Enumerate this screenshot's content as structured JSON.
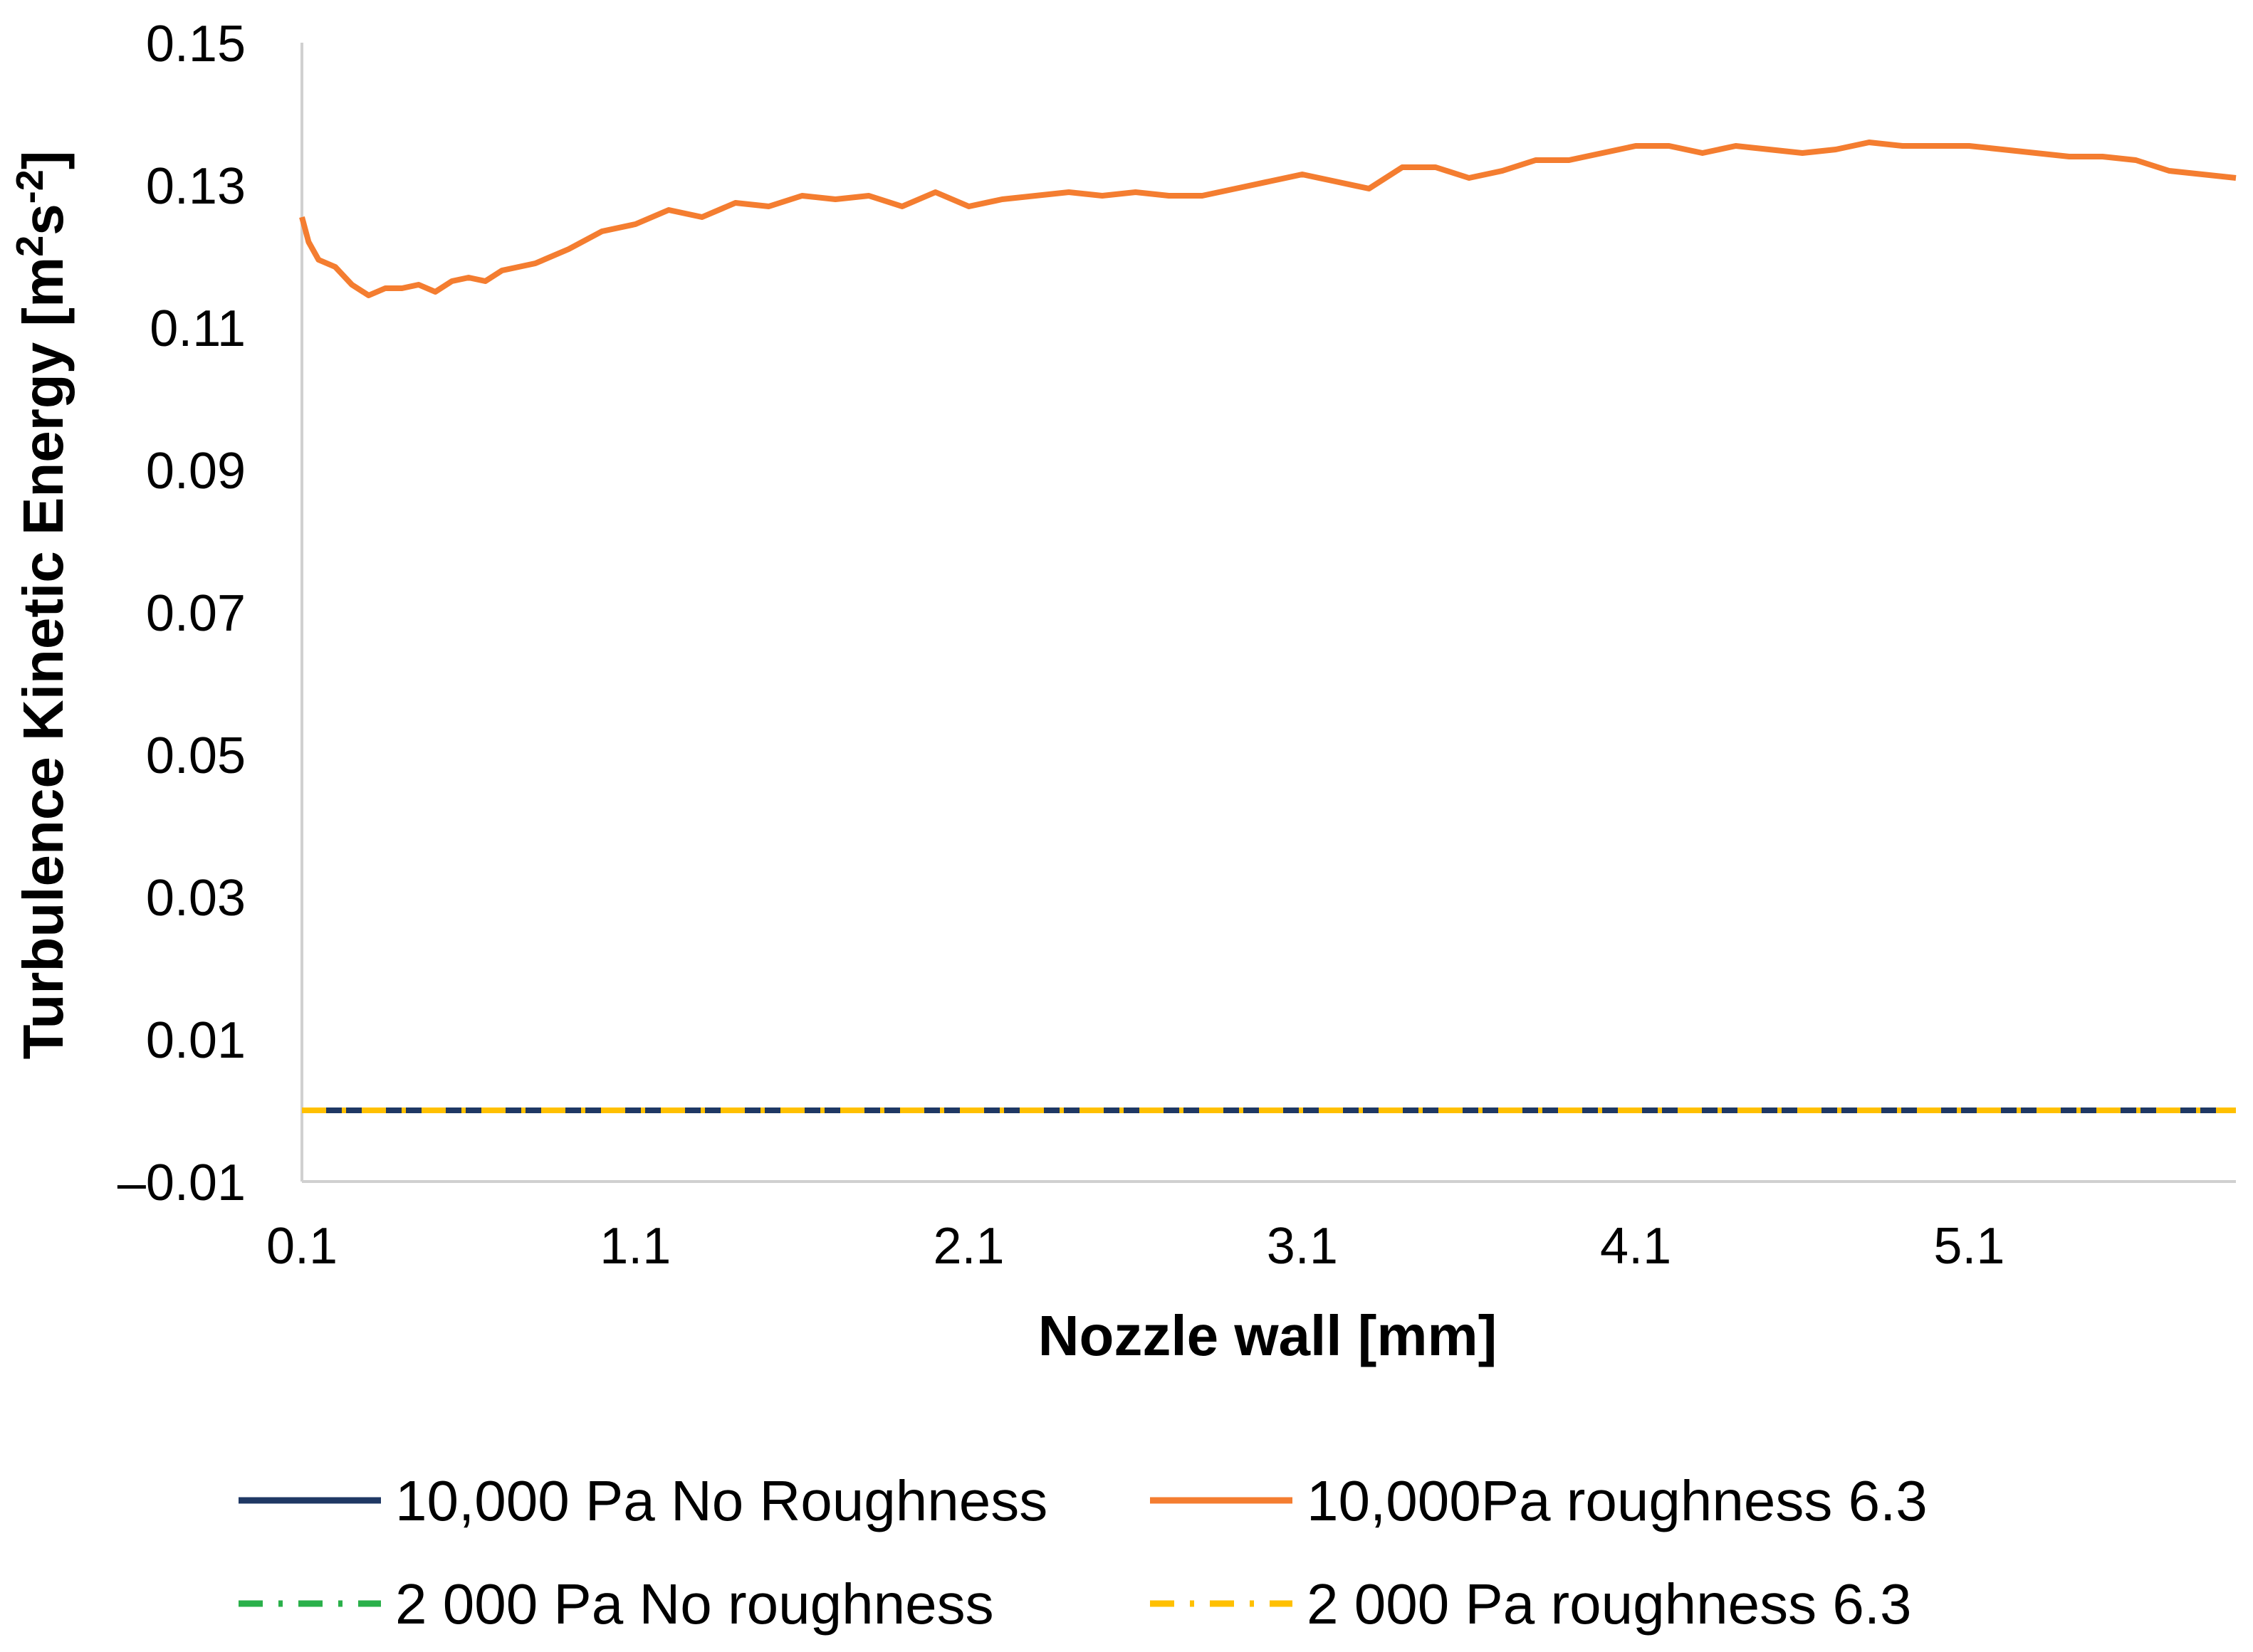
{
  "chart_data": {
    "type": "line",
    "title": "",
    "xlabel": "Nozzle wall [mm]",
    "ylabel_main": "Turbulence Kinetic Energy [m",
    "ylabel_sup1": "2",
    "ylabel_mid": "s",
    "ylabel_sup2": "-2",
    "ylabel_end": "]",
    "xlim": [
      0.1,
      5.9
    ],
    "ylim": [
      -0.01,
      0.15
    ],
    "xticks": [
      0.1,
      1.1,
      2.1,
      3.1,
      4.1,
      5.1
    ],
    "xtick_labels": [
      "0.1",
      "1.1",
      "2.1",
      "3.1",
      "4.1",
      "5.1"
    ],
    "yticks": [
      0.15,
      0.13,
      0.11,
      0.09,
      0.07,
      0.05,
      0.03,
      0.01,
      -0.01
    ],
    "ytick_labels": [
      "0.15",
      "0.13",
      "0.11",
      "0.09",
      "0.07",
      "0.05",
      "0.03",
      "0.01",
      "–0.01"
    ],
    "grid": false,
    "legend_position": "bottom",
    "series": [
      {
        "name": "10,000 Pa No Roughness",
        "color": "#1f3864",
        "dash": "solid",
        "x": [
          0.1,
          5.9
        ],
        "y": [
          0.0,
          0.0
        ]
      },
      {
        "name": "10,000Pa roughness 6.3",
        "color": "#f47d30",
        "dash": "solid",
        "x": [
          0.1,
          0.12,
          0.15,
          0.2,
          0.25,
          0.3,
          0.35,
          0.4,
          0.45,
          0.5,
          0.55,
          0.6,
          0.65,
          0.7,
          0.75,
          0.8,
          0.9,
          1.0,
          1.1,
          1.2,
          1.3,
          1.4,
          1.5,
          1.6,
          1.7,
          1.8,
          1.9,
          2.0,
          2.1,
          2.2,
          2.3,
          2.4,
          2.5,
          2.6,
          2.7,
          2.8,
          2.9,
          3.0,
          3.1,
          3.2,
          3.3,
          3.4,
          3.5,
          3.6,
          3.7,
          3.8,
          3.9,
          4.0,
          4.1,
          4.2,
          4.3,
          4.4,
          4.5,
          4.6,
          4.7,
          4.8,
          4.9,
          5.0,
          5.1,
          5.2,
          5.3,
          5.4,
          5.5,
          5.6,
          5.7,
          5.8,
          5.9
        ],
        "y": [
          0.1255,
          0.122,
          0.1195,
          0.1185,
          0.116,
          0.1145,
          0.1155,
          0.1155,
          0.116,
          0.115,
          0.1165,
          0.117,
          0.1165,
          0.118,
          0.1185,
          0.119,
          0.121,
          0.1235,
          0.1245,
          0.1265,
          0.1255,
          0.1275,
          0.127,
          0.1285,
          0.128,
          0.1285,
          0.127,
          0.129,
          0.127,
          0.128,
          0.1285,
          0.129,
          0.1285,
          0.129,
          0.1285,
          0.1285,
          0.1295,
          0.1305,
          0.1315,
          0.1305,
          0.1295,
          0.1325,
          0.1325,
          0.131,
          0.132,
          0.1335,
          0.1335,
          0.1345,
          0.1355,
          0.1355,
          0.1345,
          0.1355,
          0.135,
          0.1345,
          0.135,
          0.136,
          0.1355,
          0.1355,
          0.1355,
          0.135,
          0.1345,
          0.134,
          0.134,
          0.1335,
          0.132,
          0.1315,
          0.131
        ]
      },
      {
        "name": "2 000 Pa No roughness",
        "color": "#2ab04a",
        "dash": "dashdot",
        "x": [
          0.1,
          5.9
        ],
        "y": [
          0.0,
          0.0
        ]
      },
      {
        "name": "2 000 Pa roughness 6.3",
        "color": "#ffc000",
        "dash": "dashdot",
        "x": [
          0.1,
          5.9
        ],
        "y": [
          0.0,
          0.0
        ]
      }
    ]
  }
}
